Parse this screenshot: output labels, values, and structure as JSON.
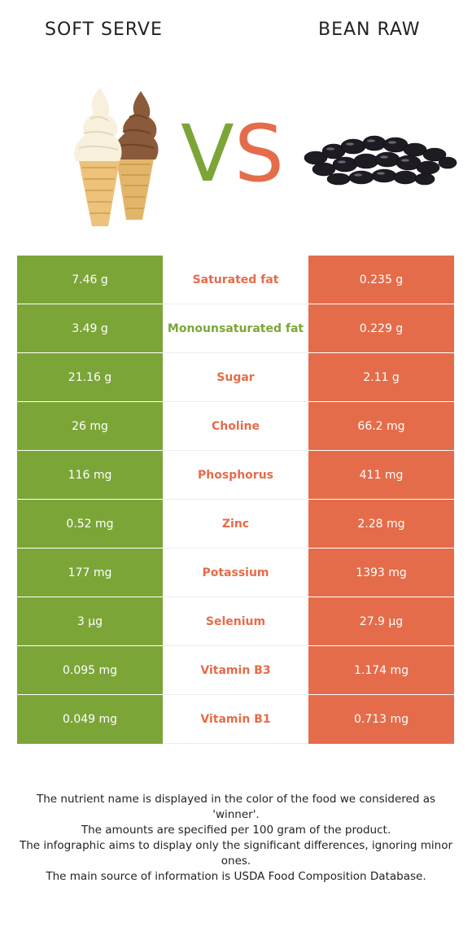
{
  "left_food": "SOFT SERVE",
  "right_food": "BEAN RAW",
  "vs_text": "VS",
  "colors": {
    "green": "#7ca538",
    "orange": "#e56c4a"
  },
  "rows": [
    {
      "left": "7.46 g",
      "name": "Saturated fat",
      "right": "0.235 g",
      "winner": "right"
    },
    {
      "left": "3.49 g",
      "name": "Monounsaturated fat",
      "right": "0.229 g",
      "winner": "left"
    },
    {
      "left": "21.16 g",
      "name": "Sugar",
      "right": "2.11 g",
      "winner": "right"
    },
    {
      "left": "26 mg",
      "name": "Choline",
      "right": "66.2 mg",
      "winner": "right"
    },
    {
      "left": "116 mg",
      "name": "Phosphorus",
      "right": "411 mg",
      "winner": "right"
    },
    {
      "left": "0.52 mg",
      "name": "Zinc",
      "right": "2.28 mg",
      "winner": "right"
    },
    {
      "left": "177 mg",
      "name": "Potassium",
      "right": "1393 mg",
      "winner": "right"
    },
    {
      "left": "3 µg",
      "name": "Selenium",
      "right": "27.9 µg",
      "winner": "right"
    },
    {
      "left": "0.095 mg",
      "name": "Vitamin B3",
      "right": "1.174 mg",
      "winner": "right"
    },
    {
      "left": "0.049 mg",
      "name": "Vitamin B1",
      "right": "0.713 mg",
      "winner": "right"
    }
  ],
  "notes": [
    "The nutrient name is displayed in the color of the food we considered as 'winner'.",
    "The amounts are specified per 100 gram of the product.",
    "The infographic aims to display only the significant differences, ignoring minor ones.",
    "The main source of information is USDA Food Composition Database."
  ]
}
